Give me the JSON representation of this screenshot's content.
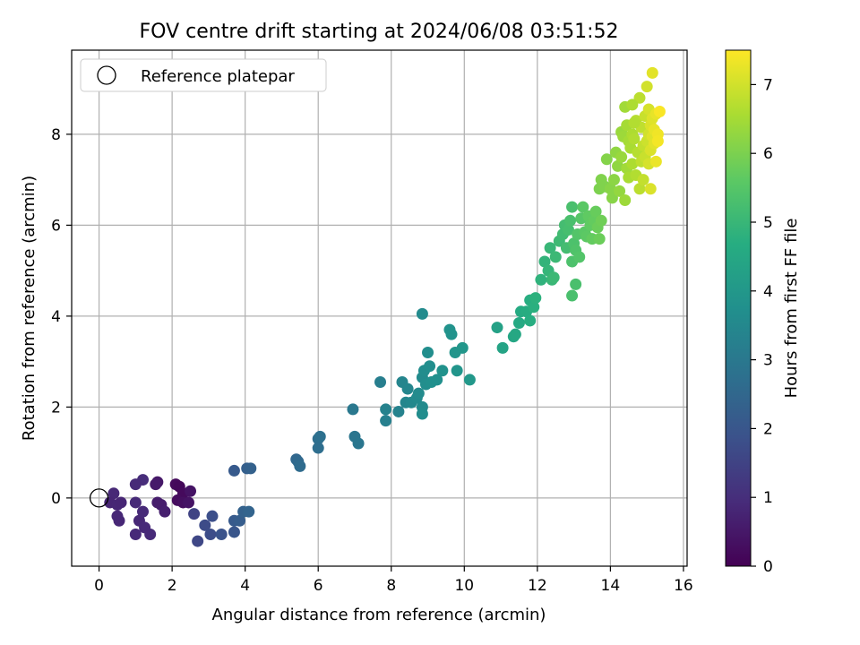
{
  "chart_data": {
    "type": "scatter",
    "title": "FOV centre drift starting at 2024/06/08 03:51:52",
    "xlabel": "Angular distance from reference (arcmin)",
    "ylabel": "Rotation from reference (arcmin)",
    "xlim": [
      -0.75,
      16.1
    ],
    "ylim": [
      -1.5,
      9.85
    ],
    "xticks": [
      0,
      2,
      4,
      6,
      8,
      10,
      12,
      14,
      16
    ],
    "yticks": [
      0,
      2,
      4,
      6,
      8
    ],
    "grid": true,
    "legend": {
      "placement": "upper-left",
      "entries": [
        "Reference platepar"
      ]
    },
    "reference_point": {
      "x": 0,
      "y": 0
    },
    "colorbar": {
      "label": "Hours from first FF file",
      "colormap": "viridis",
      "range": [
        0,
        7.5
      ],
      "ticks": [
        0,
        1,
        2,
        3,
        4,
        5,
        6,
        7
      ]
    },
    "points": [
      [
        0.4,
        0.1,
        0.85
      ],
      [
        0.3,
        -0.1,
        0.8
      ],
      [
        0.5,
        -0.15,
        0.82
      ],
      [
        0.6,
        -0.1,
        0.8
      ],
      [
        0.5,
        -0.4,
        0.85
      ],
      [
        0.55,
        -0.5,
        0.83
      ],
      [
        1.0,
        -0.1,
        0.9
      ],
      [
        1.2,
        0.4,
        0.95
      ],
      [
        1.0,
        0.3,
        0.9
      ],
      [
        1.1,
        -0.5,
        0.85
      ],
      [
        1.2,
        -0.3,
        0.9
      ],
      [
        1.0,
        -0.8,
        0.88
      ],
      [
        1.4,
        -0.8,
        0.9
      ],
      [
        1.25,
        -0.65,
        0.88
      ],
      [
        1.6,
        0.35,
        0.5
      ],
      [
        1.55,
        0.3,
        0.55
      ],
      [
        1.7,
        -0.15,
        0.6
      ],
      [
        1.8,
        -0.3,
        0.65
      ],
      [
        1.6,
        -0.1,
        0.6
      ],
      [
        2.1,
        0.3,
        0.2
      ],
      [
        2.2,
        0.25,
        0.15
      ],
      [
        2.3,
        0.1,
        0.2
      ],
      [
        2.15,
        -0.05,
        0.25
      ],
      [
        2.3,
        -0.1,
        0.3
      ],
      [
        2.5,
        0.15,
        0.4
      ],
      [
        2.45,
        -0.1,
        0.4
      ],
      [
        2.6,
        -0.35,
        1.5
      ],
      [
        2.7,
        -0.95,
        1.6
      ],
      [
        2.9,
        -0.6,
        1.7
      ],
      [
        3.1,
        -0.4,
        1.8
      ],
      [
        3.05,
        -0.8,
        1.75
      ],
      [
        3.35,
        -0.8,
        1.9
      ],
      [
        3.7,
        -0.75,
        2.0
      ],
      [
        3.7,
        -0.5,
        2.1
      ],
      [
        3.85,
        -0.5,
        2.2
      ],
      [
        3.95,
        -0.3,
        2.3
      ],
      [
        4.1,
        -0.3,
        2.4
      ],
      [
        3.7,
        0.6,
        2.1
      ],
      [
        4.05,
        0.65,
        2.25
      ],
      [
        4.15,
        0.65,
        2.3
      ],
      [
        5.4,
        0.85,
        2.5
      ],
      [
        5.45,
        0.8,
        2.55
      ],
      [
        5.5,
        0.7,
        2.6
      ],
      [
        6.0,
        1.3,
        2.7
      ],
      [
        6.05,
        1.35,
        2.75
      ],
      [
        6.0,
        1.1,
        2.7
      ],
      [
        6.95,
        1.95,
        3.0
      ],
      [
        7.0,
        1.35,
        2.9
      ],
      [
        7.1,
        1.2,
        2.95
      ],
      [
        7.7,
        2.55,
        3.2
      ],
      [
        7.85,
        1.7,
        3.25
      ],
      [
        7.85,
        1.95,
        3.3
      ],
      [
        8.2,
        1.9,
        3.3
      ],
      [
        8.3,
        2.55,
        3.4
      ],
      [
        8.4,
        2.1,
        3.45
      ],
      [
        8.45,
        2.4,
        3.45
      ],
      [
        8.55,
        2.1,
        3.5
      ],
      [
        8.7,
        2.2,
        3.55
      ],
      [
        8.75,
        2.3,
        3.6
      ],
      [
        8.85,
        2.65,
        3.6
      ],
      [
        8.85,
        2.0,
        3.6
      ],
      [
        8.85,
        1.85,
        3.65
      ],
      [
        8.9,
        2.8,
        3.65
      ],
      [
        8.95,
        2.5,
        3.7
      ],
      [
        9.0,
        3.2,
        3.7
      ],
      [
        9.05,
        2.9,
        3.7
      ],
      [
        9.1,
        2.55,
        3.75
      ],
      [
        9.25,
        2.6,
        3.75
      ],
      [
        9.4,
        2.8,
        3.8
      ],
      [
        9.6,
        3.7,
        3.85
      ],
      [
        9.65,
        3.6,
        3.85
      ],
      [
        9.75,
        3.2,
        3.9
      ],
      [
        9.8,
        2.8,
        3.9
      ],
      [
        9.95,
        3.3,
        3.95
      ],
      [
        10.15,
        2.6,
        4.0
      ],
      [
        8.85,
        4.05,
        3.6
      ],
      [
        10.9,
        3.75,
        4.3
      ],
      [
        11.05,
        3.3,
        4.35
      ],
      [
        11.35,
        3.55,
        4.45
      ],
      [
        11.4,
        3.6,
        4.5
      ],
      [
        11.5,
        3.85,
        4.55
      ],
      [
        11.55,
        4.1,
        4.6
      ],
      [
        11.7,
        4.1,
        4.65
      ],
      [
        11.8,
        4.35,
        4.7
      ],
      [
        11.8,
        3.9,
        4.7
      ],
      [
        11.9,
        4.2,
        4.75
      ],
      [
        11.95,
        4.4,
        4.8
      ],
      [
        12.1,
        4.8,
        4.85
      ],
      [
        12.2,
        5.2,
        4.9
      ],
      [
        12.3,
        5.0,
        4.95
      ],
      [
        12.35,
        5.5,
        5.0
      ],
      [
        12.4,
        4.8,
        5.0
      ],
      [
        12.45,
        4.85,
        5.05
      ],
      [
        12.5,
        5.3,
        5.05
      ],
      [
        12.6,
        5.65,
        5.1
      ],
      [
        12.7,
        5.8,
        5.15
      ],
      [
        12.75,
        6.0,
        5.2
      ],
      [
        12.8,
        5.5,
        5.2
      ],
      [
        12.85,
        5.9,
        5.25
      ],
      [
        12.9,
        6.1,
        5.3
      ],
      [
        12.95,
        6.4,
        5.3
      ],
      [
        12.95,
        5.2,
        5.35
      ],
      [
        13.0,
        5.6,
        5.35
      ],
      [
        13.05,
        5.45,
        5.4
      ],
      [
        13.1,
        5.8,
        5.45
      ],
      [
        13.15,
        5.3,
        5.45
      ],
      [
        13.2,
        6.15,
        5.5
      ],
      [
        13.25,
        6.4,
        5.55
      ],
      [
        13.3,
        5.85,
        5.55
      ],
      [
        13.35,
        5.75,
        5.6
      ],
      [
        13.4,
        6.2,
        5.65
      ],
      [
        13.45,
        6.0,
        5.65
      ],
      [
        13.5,
        5.7,
        5.7
      ],
      [
        13.55,
        6.1,
        5.7
      ],
      [
        13.6,
        6.3,
        5.75
      ],
      [
        13.65,
        5.95,
        5.8
      ],
      [
        13.7,
        5.7,
        5.8
      ],
      [
        13.75,
        6.1,
        5.85
      ],
      [
        12.95,
        4.45,
        5.3
      ],
      [
        13.05,
        4.7,
        5.3
      ],
      [
        13.7,
        6.8,
        6.0
      ],
      [
        13.75,
        7.0,
        6.05
      ],
      [
        13.85,
        6.85,
        6.05
      ],
      [
        13.9,
        7.45,
        6.1
      ],
      [
        14.0,
        6.8,
        6.15
      ],
      [
        14.05,
        6.6,
        6.15
      ],
      [
        14.1,
        7.0,
        6.2
      ],
      [
        14.15,
        7.6,
        6.25
      ],
      [
        14.2,
        7.3,
        6.25
      ],
      [
        14.25,
        6.75,
        6.3
      ],
      [
        14.3,
        8.05,
        6.35
      ],
      [
        14.3,
        7.5,
        6.35
      ],
      [
        14.35,
        7.95,
        6.4
      ],
      [
        14.4,
        6.55,
        6.4
      ],
      [
        14.4,
        8.6,
        6.45
      ],
      [
        14.45,
        7.25,
        6.45
      ],
      [
        14.45,
        8.2,
        6.5
      ],
      [
        14.5,
        7.85,
        6.5
      ],
      [
        14.5,
        7.05,
        6.55
      ],
      [
        14.55,
        7.7,
        6.55
      ],
      [
        14.6,
        8.0,
        6.6
      ],
      [
        14.6,
        7.35,
        6.6
      ],
      [
        14.65,
        7.9,
        6.65
      ],
      [
        14.7,
        7.1,
        6.65
      ],
      [
        14.7,
        8.3,
        6.7
      ],
      [
        14.75,
        7.6,
        6.7
      ],
      [
        14.8,
        8.8,
        6.75
      ],
      [
        14.8,
        6.8,
        6.75
      ],
      [
        14.85,
        7.4,
        6.8
      ],
      [
        14.85,
        8.15,
        6.8
      ],
      [
        14.9,
        7.75,
        6.85
      ],
      [
        14.9,
        7.0,
        6.85
      ],
      [
        14.95,
        8.4,
        6.9
      ],
      [
        14.95,
        7.5,
        6.9
      ],
      [
        15.0,
        7.85,
        6.95
      ],
      [
        15.0,
        9.05,
        7.0
      ],
      [
        15.05,
        8.0,
        7.0
      ],
      [
        15.05,
        8.55,
        7.05
      ],
      [
        15.05,
        7.35,
        7.05
      ],
      [
        15.1,
        7.65,
        7.1
      ],
      [
        15.1,
        8.2,
        7.1
      ],
      [
        15.1,
        6.8,
        7.1
      ],
      [
        15.15,
        7.95,
        7.15
      ],
      [
        15.15,
        8.35,
        7.15
      ],
      [
        15.15,
        9.35,
        7.2
      ],
      [
        15.2,
        7.8,
        7.2
      ],
      [
        15.2,
        8.1,
        7.25
      ],
      [
        15.25,
        8.45,
        7.25
      ],
      [
        15.25,
        7.4,
        7.3
      ],
      [
        15.3,
        8.0,
        7.35
      ],
      [
        15.3,
        7.85,
        7.4
      ],
      [
        15.35,
        8.5,
        7.45
      ],
      [
        14.6,
        8.65,
        6.6
      ],
      [
        14.65,
        8.25,
        6.65
      ]
    ]
  }
}
